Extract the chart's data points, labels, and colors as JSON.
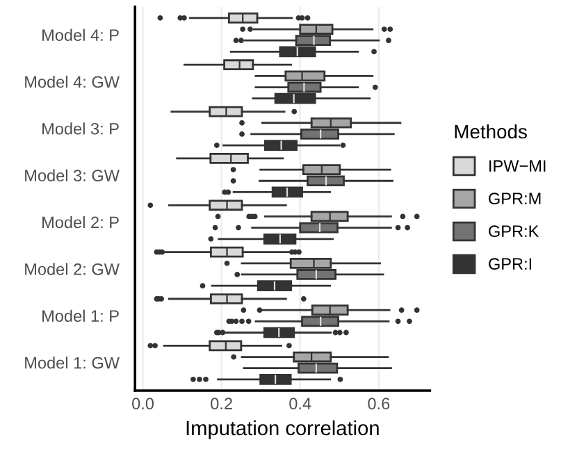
{
  "chart_data": {
    "type": "box",
    "orientation": "horizontal",
    "xlabel": "Imputation correlation",
    "legend_title": "Methods",
    "legend": "right",
    "grid": "x",
    "categories": [
      "Model 4: P",
      "Model 4: GW",
      "Model 3: P",
      "Model 3: GW",
      "Model 2: P",
      "Model 2: GW",
      "Model 1: P",
      "Model 1: GW"
    ],
    "xlim": [
      -0.02,
      0.73
    ],
    "xticks": [
      {
        "value": 0,
        "label": "0.0"
      },
      {
        "value": 0.2,
        "label": "0.2"
      },
      {
        "value": 0.4,
        "label": "0.4"
      },
      {
        "value": 0.6,
        "label": "0.6"
      }
    ],
    "series": [
      {
        "name": "IPW−MI",
        "color": "#d9d9d9",
        "boxes": [
          {
            "low": 0.12,
            "q1": 0.219,
            "median": 0.254,
            "q3": 0.291,
            "high": 0.379,
            "outliers": [
              0.044,
              0.095,
              0.105,
              0.396,
              0.405,
              0.419
            ]
          },
          {
            "low": 0.106,
            "q1": 0.207,
            "median": 0.246,
            "q3": 0.28,
            "high": 0.377
          },
          {
            "low": 0.073,
            "q1": 0.17,
            "median": 0.212,
            "q3": 0.252,
            "high": 0.36,
            "outliers": [
              0.385
            ]
          },
          {
            "low": 0.087,
            "q1": 0.172,
            "median": 0.224,
            "q3": 0.267,
            "high": 0.356
          },
          {
            "low": 0.067,
            "q1": 0.17,
            "median": 0.214,
            "q3": 0.252,
            "high": 0.364,
            "outliers": [
              0.019
            ]
          },
          {
            "low": 0.058,
            "q1": 0.173,
            "median": 0.214,
            "q3": 0.254,
            "high": 0.37,
            "outliers": [
              0.035,
              0.042,
              0.049,
              0.379,
              0.387,
              0.397
            ]
          },
          {
            "low": 0.067,
            "q1": 0.173,
            "median": 0.214,
            "q3": 0.252,
            "high": 0.364,
            "outliers": [
              0.035,
              0.04,
              0.047,
              0.409
            ]
          },
          {
            "low": 0.054,
            "q1": 0.17,
            "median": 0.211,
            "q3": 0.25,
            "high": 0.352,
            "outliers": [
              0.019,
              0.031,
              0.372
            ]
          }
        ]
      },
      {
        "name": "GPR:M",
        "color": "#a6a6a6",
        "boxes": [
          {
            "low": 0.282,
            "q1": 0.4,
            "median": 0.441,
            "q3": 0.482,
            "high": 0.584,
            "outliers": [
              0.254,
              0.273,
              0.614,
              0.629
            ]
          },
          {
            "low": 0.287,
            "q1": 0.363,
            "median": 0.405,
            "q3": 0.462,
            "high": 0.584
          },
          {
            "low": 0.304,
            "q1": 0.429,
            "median": 0.478,
            "q3": 0.529,
            "high": 0.655,
            "outliers": [
              0.252
            ]
          },
          {
            "low": 0.299,
            "q1": 0.408,
            "median": 0.455,
            "q3": 0.501,
            "high": 0.629,
            "outliers": [
              0.23
            ]
          },
          {
            "low": 0.311,
            "q1": 0.429,
            "median": 0.476,
            "q3": 0.521,
            "high": 0.631,
            "outliers": [
              0.191,
              0.27,
              0.278,
              0.285,
              0.661,
              0.697
            ]
          },
          {
            "low": 0.252,
            "q1": 0.376,
            "median": 0.435,
            "q3": 0.478,
            "high": 0.603,
            "outliers": [
              0.214
            ]
          },
          {
            "low": 0.305,
            "q1": 0.431,
            "median": 0.476,
            "q3": 0.521,
            "high": 0.627,
            "outliers": [
              0.256,
              0.297,
              0.658,
              0.697
            ]
          },
          {
            "low": 0.252,
            "q1": 0.384,
            "median": 0.429,
            "q3": 0.478,
            "high": 0.623,
            "outliers": [
              0.231
            ]
          }
        ]
      },
      {
        "name": "GPR:K",
        "color": "#737373",
        "boxes": [
          {
            "low": 0.259,
            "q1": 0.39,
            "median": 0.435,
            "q3": 0.476,
            "high": 0.6,
            "outliers": [
              0.237,
              0.25,
              0.625
            ]
          },
          {
            "low": 0.287,
            "q1": 0.37,
            "median": 0.41,
            "q3": 0.452,
            "high": 0.547,
            "outliers": [
              0.591
            ]
          },
          {
            "low": 0.276,
            "q1": 0.403,
            "median": 0.452,
            "q3": 0.497,
            "high": 0.638,
            "outliers": [
              0.252
            ]
          },
          {
            "low": 0.297,
            "q1": 0.419,
            "median": 0.466,
            "q3": 0.511,
            "high": 0.635,
            "outliers": [
              0.23
            ]
          },
          {
            "low": 0.278,
            "q1": 0.4,
            "median": 0.45,
            "q3": 0.495,
            "high": 0.631,
            "outliers": [
              0.184,
              0.243,
              0.649,
              0.673
            ]
          },
          {
            "low": 0.252,
            "q1": 0.393,
            "median": 0.441,
            "q3": 0.49,
            "high": 0.611,
            "outliers": [
              0.24
            ]
          },
          {
            "low": 0.287,
            "q1": 0.405,
            "median": 0.452,
            "q3": 0.497,
            "high": 0.625,
            "outliers": [
              0.219,
              0.226,
              0.237,
              0.252,
              0.269,
              0.649,
              0.678
            ]
          },
          {
            "low": 0.257,
            "q1": 0.396,
            "median": 0.441,
            "q3": 0.494,
            "high": 0.631
          }
        ]
      },
      {
        "name": "GPR:I",
        "color": "#333333",
        "boxes": [
          {
            "low": 0.224,
            "q1": 0.349,
            "median": 0.393,
            "q3": 0.438,
            "high": 0.547,
            "outliers": [
              0.588
            ]
          },
          {
            "low": 0.28,
            "q1": 0.337,
            "median": 0.384,
            "q3": 0.438,
            "high": 0.577
          },
          {
            "low": 0.205,
            "q1": 0.311,
            "median": 0.352,
            "q3": 0.391,
            "high": 0.499,
            "outliers": [
              0.188,
              0.509
            ]
          },
          {
            "low": 0.231,
            "q1": 0.33,
            "median": 0.367,
            "q3": 0.405,
            "high": 0.476,
            "outliers": [
              0.208,
              0.217
            ]
          },
          {
            "low": 0.193,
            "q1": 0.309,
            "median": 0.349,
            "q3": 0.388,
            "high": 0.483,
            "outliers": [
              0.173
            ]
          },
          {
            "low": 0.176,
            "q1": 0.293,
            "median": 0.335,
            "q3": 0.377,
            "high": 0.476,
            "outliers": [
              0.152
            ]
          },
          {
            "low": 0.212,
            "q1": 0.309,
            "median": 0.346,
            "q3": 0.384,
            "high": 0.478,
            "outliers": [
              0.188,
              0.193,
              0.203,
              0.49,
              0.501,
              0.517
            ]
          },
          {
            "low": 0.191,
            "q1": 0.299,
            "median": 0.337,
            "q3": 0.376,
            "high": 0.476,
            "outliers": [
              0.128,
              0.144,
              0.16,
              0.502
            ]
          }
        ]
      }
    ]
  }
}
